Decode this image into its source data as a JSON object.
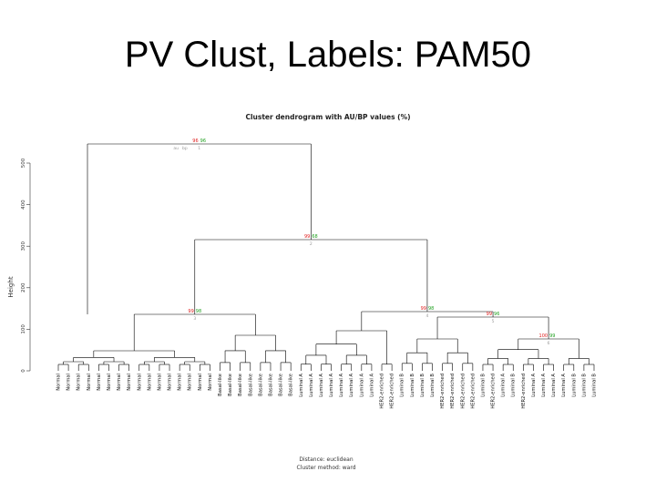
{
  "slide": {
    "title": "PV Clust, Labels: PAM50"
  },
  "dendrogram": {
    "title": "Cluster dendrogram with AU/BP values (%)",
    "ylabel": "Height",
    "yticks": [
      "0",
      "100",
      "200",
      "300",
      "400",
      "500"
    ],
    "legend": {
      "au": "au",
      "bp": "bp"
    },
    "footer": [
      "Distance: euclidean",
      "Cluster method: ward"
    ],
    "colors": {
      "au": "#e02020",
      "bp": "#20a020",
      "edge": "#999999",
      "tree": "#000000"
    },
    "top_nodes": [
      {
        "au": "96",
        "bp": "96",
        "edge": "1"
      },
      {
        "au": "99",
        "bp": "68",
        "edge": "2"
      },
      {
        "au": "99",
        "bp": "98",
        "edge": "3"
      },
      {
        "au": "99",
        "bp": "98",
        "edge": "4"
      },
      {
        "au": "99",
        "bp": "96",
        "edge": "5"
      },
      {
        "au": "100",
        "bp": "99",
        "edge": "6"
      }
    ],
    "leaves": [
      "Normal",
      "Normal",
      "Normal",
      "Normal",
      "Normal",
      "Normal",
      "Normal",
      "Normal",
      "Normal",
      "Normal",
      "Normal",
      "Normal",
      "Normal",
      "Normal",
      "Normal",
      "Normal",
      "Basal-like",
      "Basal-like",
      "Basal-like",
      "Basal-like",
      "Basal-like",
      "Basal-like",
      "Basal-like",
      "Basal-like",
      "Luminal A",
      "Luminal A",
      "Luminal A",
      "Luminal A",
      "Luminal A",
      "Luminal A",
      "Luminal A",
      "Luminal A",
      "HER2-enriched",
      "HER2-enriched",
      "Luminal B",
      "Luminal B",
      "Luminal B",
      "Luminal B",
      "HER2-enriched",
      "HER2-enriched",
      "HER2-enriched",
      "HER2-enriched",
      "Luminal B",
      "HER2-enriched",
      "Luminal A",
      "Luminal B",
      "HER2-enriched",
      "Luminal A",
      "Luminal A",
      "Luminal A",
      "Luminal A",
      "Luminal B",
      "Luminal B",
      "Luminal B"
    ]
  }
}
